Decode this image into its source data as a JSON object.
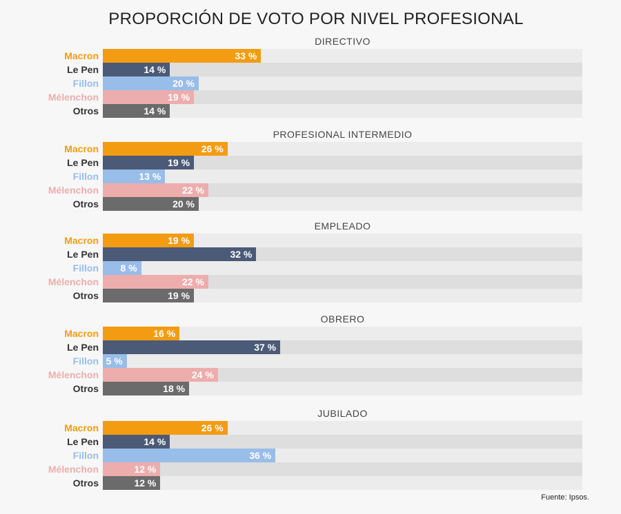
{
  "chart_data": {
    "type": "bar",
    "orientation": "horizontal",
    "title": "PROPORCIÓN DE VOTO POR NIVEL PROFESIONAL",
    "source": "Fuente: Ipsos.",
    "xlim": [
      0,
      100
    ],
    "unit": "%",
    "categories": [
      "Macron",
      "Le Pen",
      "Fillon",
      "Mélenchon",
      "Otros"
    ],
    "colors": {
      "Macron": "#f39c12",
      "Le Pen": "#4b5a76",
      "Fillon": "#98bde8",
      "Mélenchon": "#edadad",
      "Otros": "#6b6b6b"
    },
    "label_colors": {
      "Macron": "#f39c12",
      "Le Pen": "#333333",
      "Fillon": "#98bde8",
      "Mélenchon": "#edadad",
      "Otros": "#333333"
    },
    "groups": [
      {
        "name": "DIRECTIVO",
        "values": [
          33,
          14,
          20,
          19,
          14
        ]
      },
      {
        "name": "PROFESIONAL INTERMEDIO",
        "values": [
          26,
          19,
          13,
          22,
          20
        ]
      },
      {
        "name": "EMPLEADO",
        "values": [
          19,
          32,
          8,
          22,
          19
        ]
      },
      {
        "name": "OBRERO",
        "values": [
          16,
          37,
          5,
          24,
          18
        ]
      },
      {
        "name": "JUBILADO",
        "values": [
          26,
          14,
          36,
          12,
          12
        ]
      }
    ]
  }
}
